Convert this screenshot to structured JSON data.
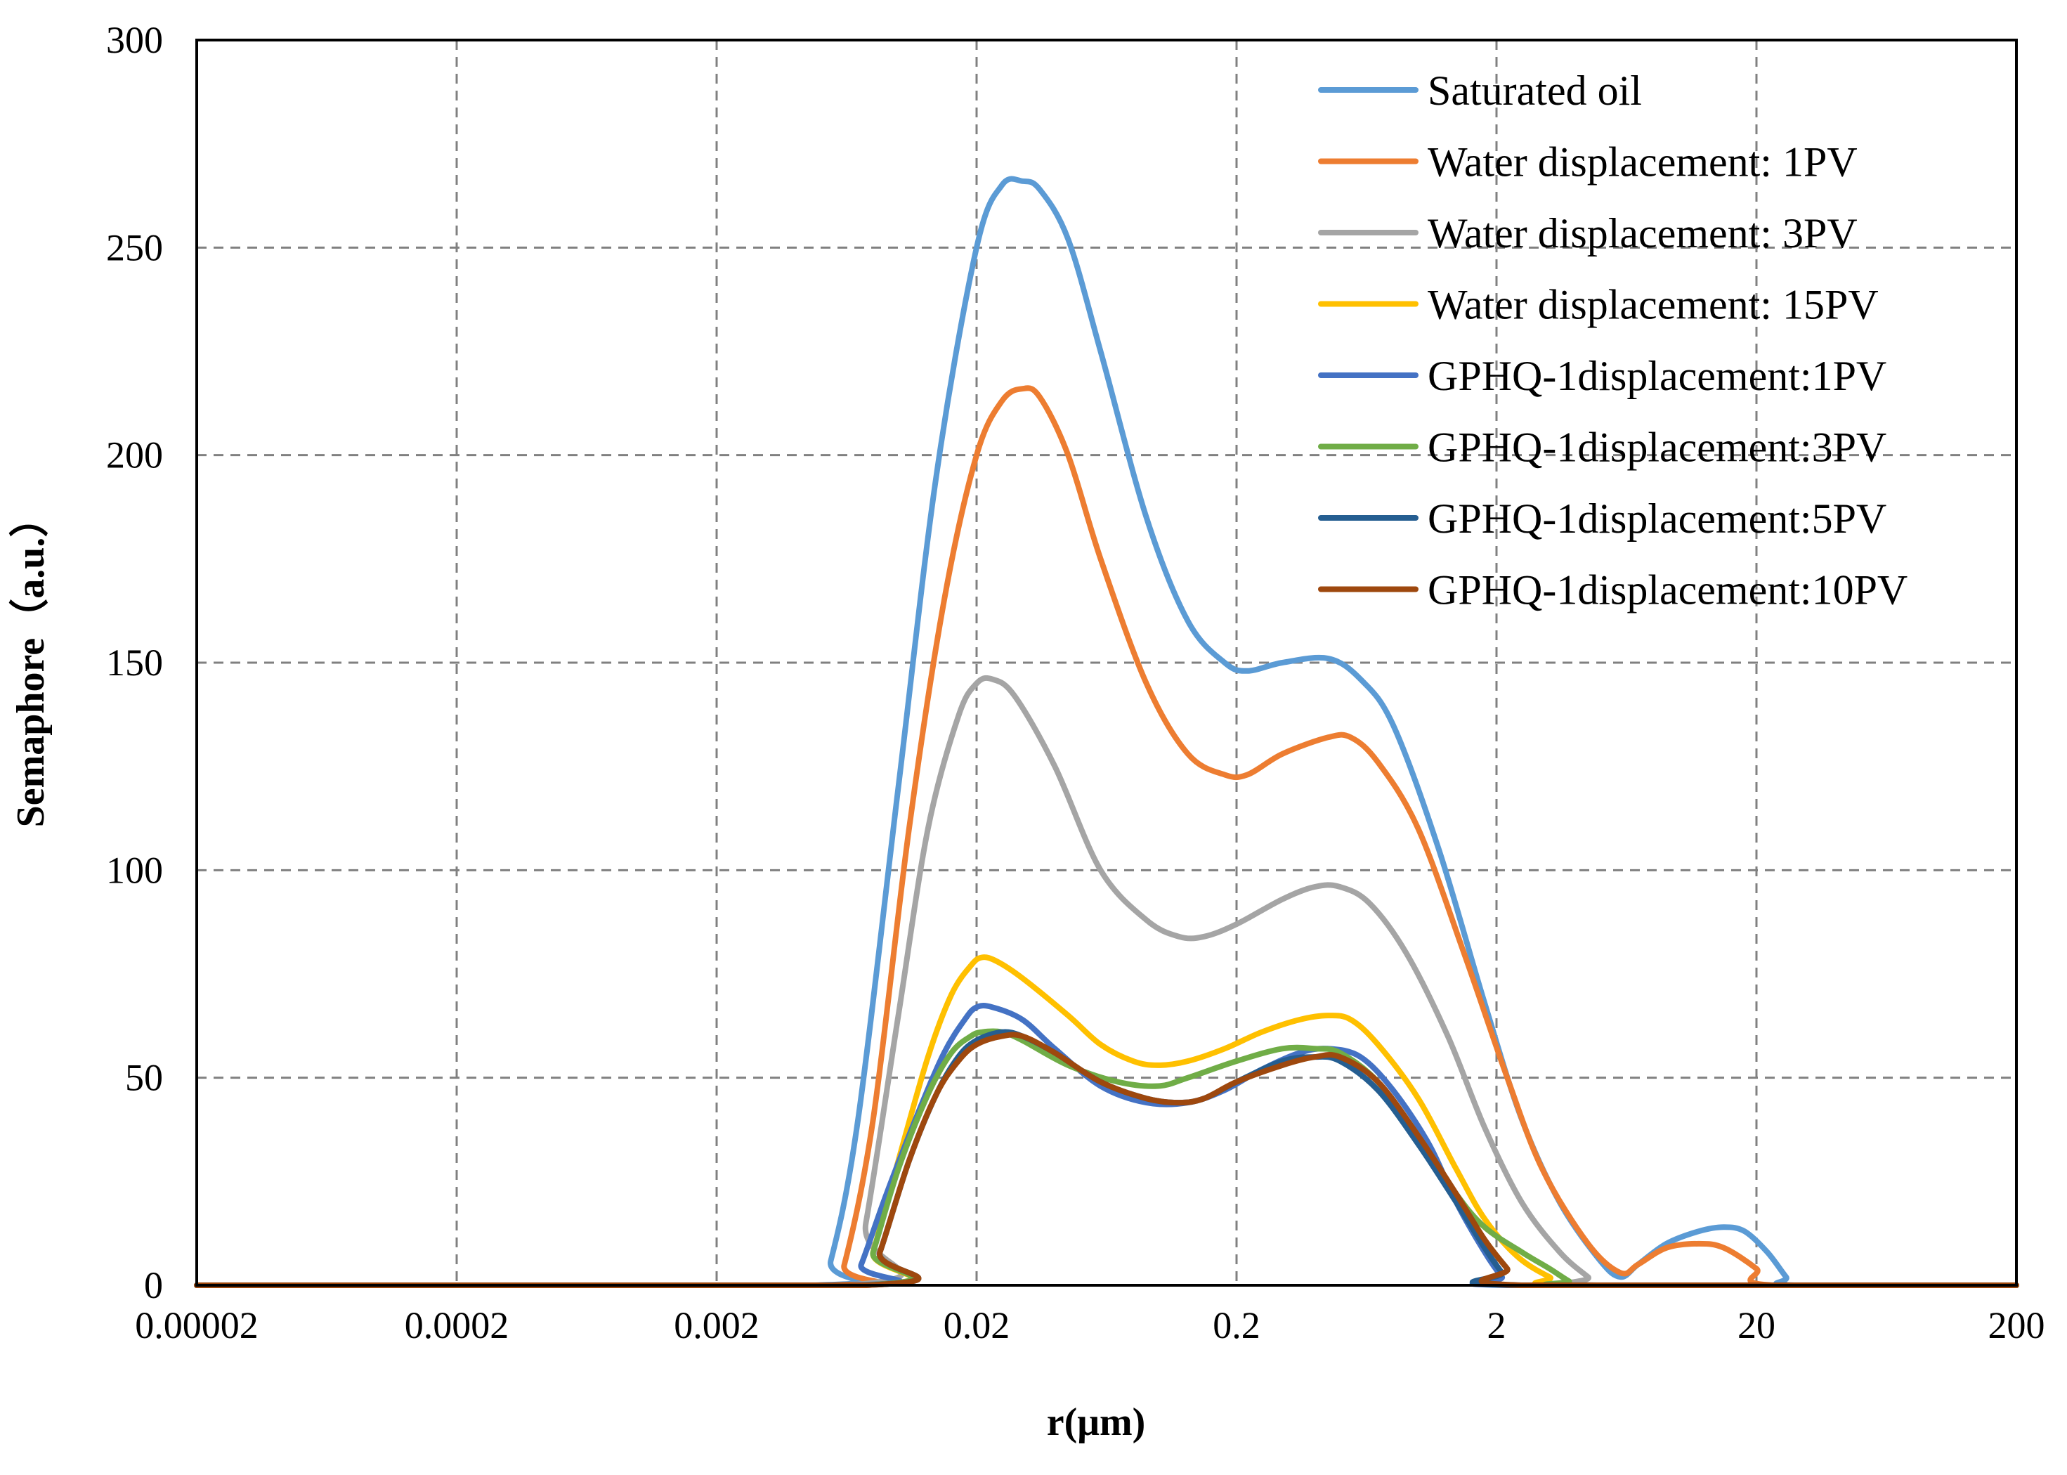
{
  "chart_data": {
    "type": "line",
    "title": "",
    "xlabel": "r(μm)",
    "ylabel": "Semaphore（a.u.）",
    "x_scale": "log",
    "xlim": [
      2e-05,
      200
    ],
    "ylim": [
      0,
      300
    ],
    "x_ticks": [
      2e-05,
      0.0002,
      0.002,
      0.02,
      0.2,
      2,
      20,
      200
    ],
    "x_tick_labels": [
      "0.00002",
      "0.0002",
      "0.002",
      "0.02",
      "0.2",
      "2",
      "20",
      "200"
    ],
    "y_ticks": [
      0,
      50,
      100,
      150,
      200,
      250,
      300
    ],
    "y_tick_labels": [
      "0",
      "50",
      "100",
      "150",
      "200",
      "250",
      "300"
    ],
    "grid": true,
    "legend_position": "top-right",
    "series": [
      {
        "name": "Saturated oil",
        "color": "#5B9BD5",
        "points": [
          [
            2e-05,
            0
          ],
          [
            0.0048,
            0
          ],
          [
            0.0055,
            6
          ],
          [
            0.007,
            40
          ],
          [
            0.01,
            120
          ],
          [
            0.014,
            195
          ],
          [
            0.02,
            250
          ],
          [
            0.025,
            265
          ],
          [
            0.03,
            266
          ],
          [
            0.035,
            264
          ],
          [
            0.045,
            252
          ],
          [
            0.06,
            225
          ],
          [
            0.09,
            185
          ],
          [
            0.13,
            160
          ],
          [
            0.18,
            150
          ],
          [
            0.22,
            148
          ],
          [
            0.3,
            150
          ],
          [
            0.45,
            151
          ],
          [
            0.6,
            146
          ],
          [
            0.8,
            135
          ],
          [
            1.2,
            105
          ],
          [
            1.8,
            68
          ],
          [
            2.5,
            40
          ],
          [
            3.5,
            20
          ],
          [
            5,
            6
          ],
          [
            6,
            2
          ],
          [
            7,
            5
          ],
          [
            9,
            10
          ],
          [
            12,
            13
          ],
          [
            15,
            14
          ],
          [
            18,
            13
          ],
          [
            22,
            8
          ],
          [
            26,
            2
          ],
          [
            28,
            0
          ],
          [
            200,
            0
          ]
        ]
      },
      {
        "name": "Water displacement: 1PV",
        "color": "#ED7D31",
        "points": [
          [
            2e-05,
            0
          ],
          [
            0.0055,
            0
          ],
          [
            0.0062,
            5
          ],
          [
            0.008,
            40
          ],
          [
            0.011,
            110
          ],
          [
            0.015,
            165
          ],
          [
            0.02,
            200
          ],
          [
            0.025,
            213
          ],
          [
            0.03,
            216
          ],
          [
            0.035,
            214
          ],
          [
            0.045,
            200
          ],
          [
            0.06,
            175
          ],
          [
            0.09,
            145
          ],
          [
            0.13,
            128
          ],
          [
            0.18,
            123
          ],
          [
            0.22,
            123
          ],
          [
            0.3,
            128
          ],
          [
            0.45,
            132
          ],
          [
            0.55,
            132
          ],
          [
            0.7,
            126
          ],
          [
            1,
            110
          ],
          [
            1.5,
            80
          ],
          [
            2.2,
            50
          ],
          [
            3,
            28
          ],
          [
            4.5,
            10
          ],
          [
            6,
            3
          ],
          [
            7,
            5
          ],
          [
            9,
            9
          ],
          [
            12,
            10
          ],
          [
            15,
            9
          ],
          [
            20,
            4
          ],
          [
            23,
            0
          ],
          [
            200,
            0
          ]
        ]
      },
      {
        "name": "Water displacement: 3PV",
        "color": "#A5A5A5",
        "points": [
          [
            2e-05,
            0
          ],
          [
            0.0065,
            0
          ],
          [
            0.0075,
            15
          ],
          [
            0.01,
            65
          ],
          [
            0.013,
            110
          ],
          [
            0.017,
            137
          ],
          [
            0.02,
            145
          ],
          [
            0.023,
            146
          ],
          [
            0.028,
            142
          ],
          [
            0.04,
            125
          ],
          [
            0.06,
            100
          ],
          [
            0.09,
            88
          ],
          [
            0.12,
            84
          ],
          [
            0.15,
            84
          ],
          [
            0.2,
            87
          ],
          [
            0.3,
            93
          ],
          [
            0.4,
            96
          ],
          [
            0.5,
            96
          ],
          [
            0.65,
            92
          ],
          [
            0.9,
            80
          ],
          [
            1.3,
            60
          ],
          [
            1.8,
            38
          ],
          [
            2.5,
            20
          ],
          [
            3.5,
            8
          ],
          [
            4.5,
            2
          ],
          [
            5,
            0
          ],
          [
            200,
            0
          ]
        ]
      },
      {
        "name": "Water displacement: 15PV",
        "color": "#FFC000",
        "points": [
          [
            2e-05,
            0
          ],
          [
            0.0072,
            0
          ],
          [
            0.008,
            8
          ],
          [
            0.01,
            30
          ],
          [
            0.013,
            55
          ],
          [
            0.016,
            70
          ],
          [
            0.019,
            77
          ],
          [
            0.021,
            79
          ],
          [
            0.024,
            78
          ],
          [
            0.03,
            74
          ],
          [
            0.045,
            65
          ],
          [
            0.06,
            58
          ],
          [
            0.08,
            54
          ],
          [
            0.1,
            53
          ],
          [
            0.13,
            54
          ],
          [
            0.18,
            57
          ],
          [
            0.25,
            61
          ],
          [
            0.35,
            64
          ],
          [
            0.45,
            65
          ],
          [
            0.55,
            64
          ],
          [
            0.7,
            58
          ],
          [
            1,
            45
          ],
          [
            1.4,
            28
          ],
          [
            1.8,
            16
          ],
          [
            2.4,
            7
          ],
          [
            3.2,
            2
          ],
          [
            4,
            0
          ],
          [
            200,
            0
          ]
        ]
      },
      {
        "name": "GPHQ-1displacement:1PV",
        "color": "#4472C4",
        "points": [
          [
            2e-05,
            0
          ],
          [
            0.0065,
            0
          ],
          [
            0.0072,
            5
          ],
          [
            0.009,
            22
          ],
          [
            0.012,
            42
          ],
          [
            0.015,
            56
          ],
          [
            0.018,
            64
          ],
          [
            0.02,
            67
          ],
          [
            0.023,
            67
          ],
          [
            0.03,
            64
          ],
          [
            0.04,
            57
          ],
          [
            0.06,
            48
          ],
          [
            0.09,
            44
          ],
          [
            0.13,
            44
          ],
          [
            0.18,
            47
          ],
          [
            0.25,
            52
          ],
          [
            0.35,
            56
          ],
          [
            0.45,
            57
          ],
          [
            0.6,
            55
          ],
          [
            0.8,
            47
          ],
          [
            1.1,
            34
          ],
          [
            1.4,
            20
          ],
          [
            1.8,
            8
          ],
          [
            2.1,
            2
          ],
          [
            2.3,
            0
          ],
          [
            200,
            0
          ]
        ]
      },
      {
        "name": "GPHQ-1displacement:3PV",
        "color": "#70AD47",
        "points": [
          [
            2e-05,
            0
          ],
          [
            0.0072,
            0
          ],
          [
            0.008,
            8
          ],
          [
            0.01,
            28
          ],
          [
            0.013,
            46
          ],
          [
            0.016,
            56
          ],
          [
            0.019,
            60
          ],
          [
            0.021,
            61
          ],
          [
            0.025,
            61
          ],
          [
            0.03,
            59
          ],
          [
            0.045,
            53
          ],
          [
            0.07,
            49
          ],
          [
            0.1,
            48
          ],
          [
            0.13,
            50
          ],
          [
            0.2,
            54
          ],
          [
            0.3,
            57
          ],
          [
            0.4,
            57
          ],
          [
            0.5,
            56
          ],
          [
            0.7,
            49
          ],
          [
            1,
            36
          ],
          [
            1.4,
            22
          ],
          [
            1.8,
            14
          ],
          [
            2.5,
            8
          ],
          [
            3.2,
            4
          ],
          [
            3.8,
            1
          ],
          [
            4.2,
            0
          ],
          [
            200,
            0
          ]
        ]
      },
      {
        "name": "GPHQ-1displacement:5PV",
        "color": "#255E91",
        "points": [
          [
            2e-05,
            0
          ],
          [
            0.0075,
            0
          ],
          [
            0.0085,
            8
          ],
          [
            0.011,
            30
          ],
          [
            0.014,
            46
          ],
          [
            0.017,
            55
          ],
          [
            0.02,
            59
          ],
          [
            0.025,
            61
          ],
          [
            0.03,
            60
          ],
          [
            0.04,
            56
          ],
          [
            0.06,
            49
          ],
          [
            0.09,
            45
          ],
          [
            0.12,
            44
          ],
          [
            0.15,
            45
          ],
          [
            0.2,
            49
          ],
          [
            0.3,
            54
          ],
          [
            0.4,
            55
          ],
          [
            0.5,
            54
          ],
          [
            0.7,
            47
          ],
          [
            1,
            34
          ],
          [
            1.4,
            20
          ],
          [
            1.8,
            9
          ],
          [
            2.1,
            3
          ],
          [
            2.3,
            0
          ],
          [
            200,
            0
          ]
        ]
      },
      {
        "name": "GPHQ-1displacement:10PV",
        "color": "#9E480E",
        "points": [
          [
            2e-05,
            0
          ],
          [
            0.0075,
            0
          ],
          [
            0.0085,
            8
          ],
          [
            0.011,
            30
          ],
          [
            0.014,
            46
          ],
          [
            0.017,
            54
          ],
          [
            0.02,
            58
          ],
          [
            0.025,
            60
          ],
          [
            0.03,
            60
          ],
          [
            0.04,
            56
          ],
          [
            0.06,
            49
          ],
          [
            0.09,
            45
          ],
          [
            0.12,
            44
          ],
          [
            0.15,
            45
          ],
          [
            0.2,
            49
          ],
          [
            0.3,
            53
          ],
          [
            0.4,
            55
          ],
          [
            0.5,
            55
          ],
          [
            0.7,
            49
          ],
          [
            1,
            36
          ],
          [
            1.4,
            22
          ],
          [
            1.8,
            11
          ],
          [
            2.2,
            4
          ],
          [
            2.5,
            0
          ],
          [
            200,
            0
          ]
        ]
      }
    ]
  }
}
